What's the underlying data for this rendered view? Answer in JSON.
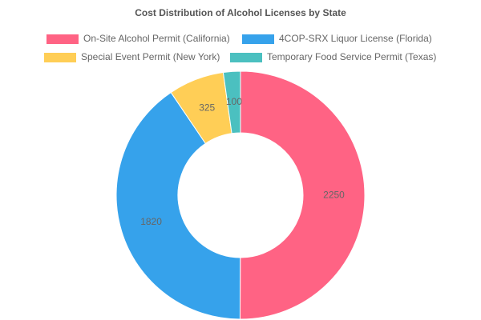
{
  "chart_data": {
    "type": "doughnut",
    "title": "Cost Distribution of Alcohol Licenses by State",
    "categories": [
      "On-Site Alcohol Permit (California)",
      "4COP-SRX Liquor License (Florida)",
      "Special Event Permit (New York)",
      "Temporary Food Service Permit (Texas)"
    ],
    "values": [
      2250,
      1820,
      325,
      100
    ],
    "colors": [
      "#ff6384",
      "#36a2eb",
      "#ffce56",
      "#4bc0c0"
    ]
  }
}
